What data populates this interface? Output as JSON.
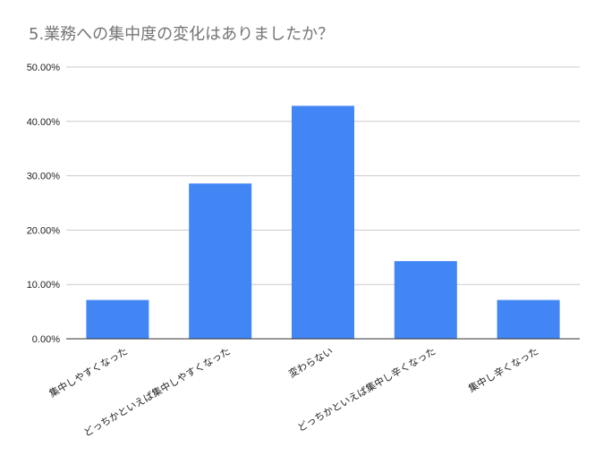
{
  "chart_data": {
    "type": "bar",
    "title": "5.業務への集中度の変化はありましたか？",
    "categories": [
      "集中しやすくなった",
      "どっちかといえば集中しやすくなった",
      "変わらない",
      "どっちかといえば集中し辛くなった",
      "集中し辛くなった"
    ],
    "values": [
      7.14,
      28.57,
      42.86,
      14.29,
      7.14
    ],
    "ylim": [
      0,
      50
    ],
    "yticks": [
      "0.00%",
      "10.00%",
      "20.00%",
      "30.00%",
      "40.00%",
      "50.00%"
    ],
    "xlabel": "",
    "ylabel": "",
    "grid": true,
    "legend": "none",
    "bar_color": "#4285f4",
    "grid_color": "#cccccc",
    "axis_color": "#333333",
    "title_color": "#757575"
  }
}
